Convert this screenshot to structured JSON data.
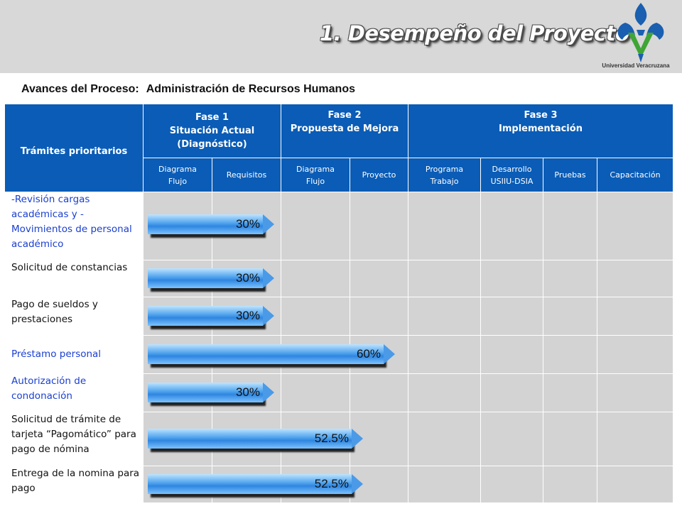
{
  "header": {
    "title": "1. Desempeño del Proyecto",
    "institution": "Universidad Veracruzana"
  },
  "subtitle": {
    "label": "Avances del Proceso:",
    "value": "Administración de Recursos Humanos"
  },
  "table": {
    "first_header": "Trámites prioritarios",
    "phases": [
      {
        "title": "Fase 1",
        "subtitle": "Situación Actual (Diagnóstico)"
      },
      {
        "title": "Fase 2",
        "subtitle": "Propuesta de Mejora"
      },
      {
        "title": "Fase 3",
        "subtitle": "Implementación"
      }
    ],
    "columns": [
      "Diagrama Flujo",
      "Requisitos",
      "Diagrama Flujo",
      "Proyecto",
      "Programa Trabajo",
      "Desarrollo USIIU-DSIA",
      "Pruebas",
      "Capacitación"
    ],
    "rows": [
      {
        "label": "-Revisión cargas académicas y -Movimientos de personal académico",
        "progress": "30%",
        "color": "blue"
      },
      {
        "label": "Solicitud de constancias",
        "progress": "30%",
        "color": "dark"
      },
      {
        "label": "Pago de sueldos y prestaciones",
        "progress": "30%",
        "color": "dark"
      },
      {
        "label": "Préstamo personal",
        "progress": "60%",
        "color": "blue"
      },
      {
        "label": "Autorización de condonación",
        "progress": "30%",
        "color": "blue"
      },
      {
        "label": "Solicitud de trámite de tarjeta “Pagomático” para pago de nómina",
        "progress": "52.5%",
        "color": "dark"
      },
      {
        "label": "Entrega de la nomina para pago",
        "progress": "52.5%",
        "color": "dark"
      }
    ]
  },
  "colors": {
    "header_blue": "#0a5cb6",
    "cell_gray": "#d3d3d3",
    "bar_blue": "#3a8ee6",
    "label_blue": "#1a3fd0"
  }
}
